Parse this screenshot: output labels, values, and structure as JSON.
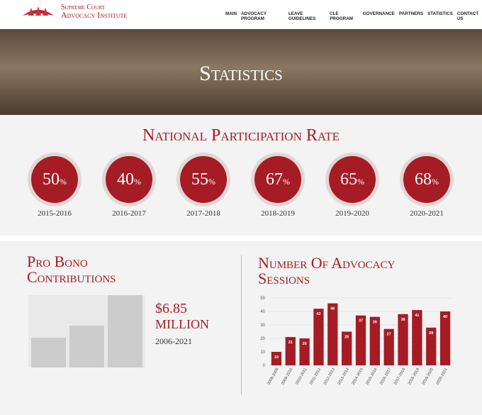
{
  "header": {
    "logo_line1": "Supreme Court",
    "logo_line2": "Advocacy Institute",
    "nav": [
      "MAIN",
      "ADVOCACY PROGRAM",
      "LEAVE GUIDELINES",
      "CLE PROGRAM",
      "GOVERNANCE",
      "PARTNERS",
      "STATISTICS",
      "CONTACT US"
    ]
  },
  "hero": {
    "title": "Statistics"
  },
  "participation": {
    "title": "National Participation Rate",
    "unit": "%",
    "rates": [
      {
        "value": 50,
        "year": "2015-2016"
      },
      {
        "value": 40,
        "year": "2016-2017"
      },
      {
        "value": 55,
        "year": "2017-2018"
      },
      {
        "value": 67,
        "year": "2018-2019"
      },
      {
        "value": 65,
        "year": "2019-2020"
      },
      {
        "value": 68,
        "year": "2020-2021"
      }
    ]
  },
  "pro_bono": {
    "title": "Pro Bono Contributions",
    "amount": "$6.85",
    "amount_unit": "MILLION",
    "period": "2006-2021"
  },
  "chart_data": {
    "type": "bar",
    "title": "Number Of Advocacy Sessions",
    "categories": [
      "2008-2009",
      "2009-2010",
      "2010-2011",
      "2011-2012",
      "2012-2013",
      "2013-2014",
      "2014-2015",
      "2015-2016",
      "2016-2017",
      "2017-2018",
      "2018-2019",
      "2019-2020",
      "2020-2021"
    ],
    "values": [
      10,
      21,
      20,
      42,
      46,
      25,
      37,
      36,
      27,
      38,
      41,
      28,
      40
    ],
    "color": "#a51c24",
    "ylim": [
      0,
      50
    ],
    "yticks": [
      0,
      10,
      20,
      30,
      40,
      50
    ],
    "grid": true
  }
}
